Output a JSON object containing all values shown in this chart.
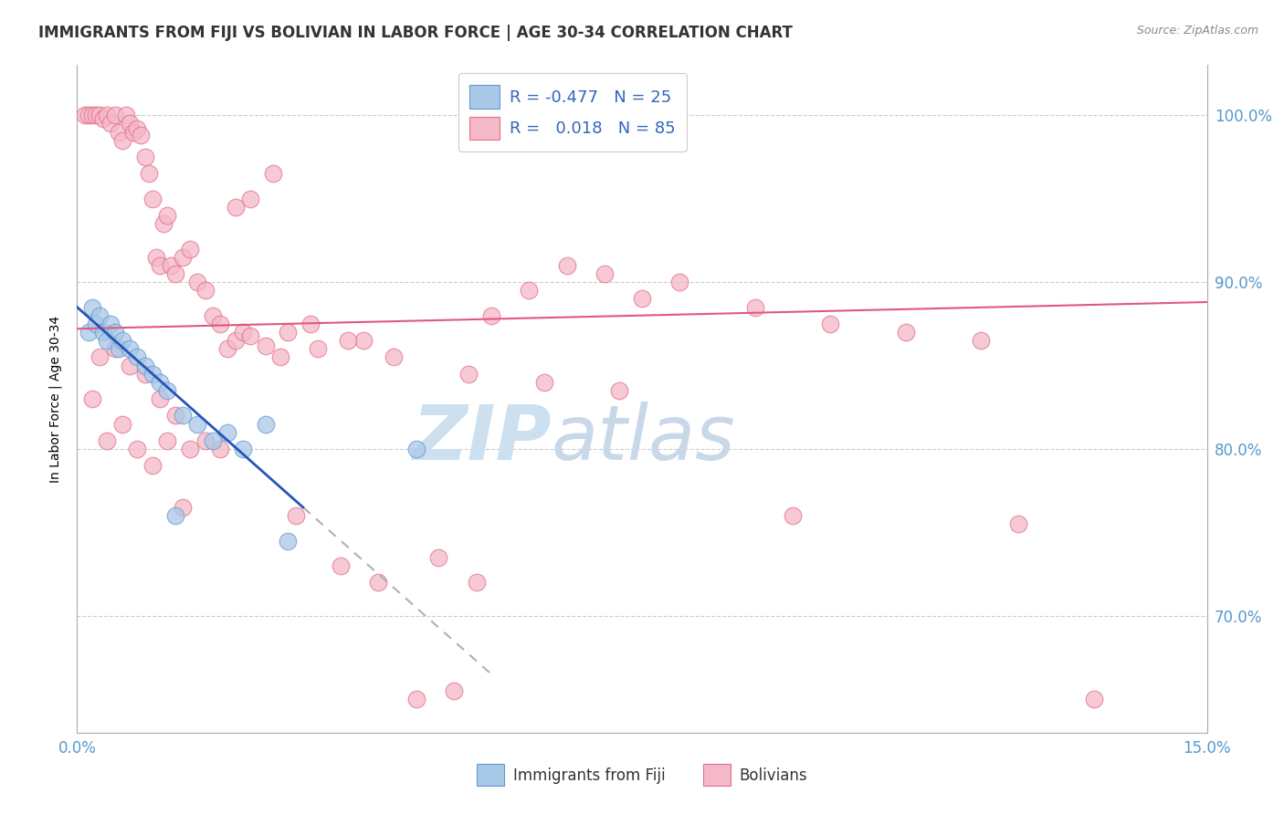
{
  "title": "IMMIGRANTS FROM FIJI VS BOLIVIAN IN LABOR FORCE | AGE 30-34 CORRELATION CHART",
  "source": "Source: ZipAtlas.com",
  "ylabel": "In Labor Force | Age 30-34",
  "xlim": [
    0.0,
    15.0
  ],
  "ylim": [
    63.0,
    103.0
  ],
  "yticks": [
    70.0,
    80.0,
    90.0,
    100.0
  ],
  "ytick_labels": [
    "70.0%",
    "80.0%",
    "90.0%",
    "100.0%"
  ],
  "legend_fiji_label": "Immigrants from Fiji",
  "legend_bolivia_label": "Bolivians",
  "fiji_R": "-0.477",
  "fiji_N": "25",
  "bolivia_R": "0.018",
  "bolivia_N": "85",
  "fiji_color": "#a8c8e8",
  "fiji_edge_color": "#6699cc",
  "bolivia_color": "#f5b8c8",
  "bolivia_edge_color": "#e0708a",
  "fiji_scatter_x": [
    0.15,
    0.2,
    0.25,
    0.3,
    0.35,
    0.4,
    0.45,
    0.5,
    0.55,
    0.6,
    0.7,
    0.8,
    0.9,
    1.0,
    1.1,
    1.2,
    1.4,
    1.6,
    1.8,
    2.0,
    2.2,
    2.5,
    2.8,
    1.3,
    4.5
  ],
  "fiji_scatter_y": [
    87.0,
    88.5,
    87.5,
    88.0,
    87.0,
    86.5,
    87.5,
    87.0,
    86.0,
    86.5,
    86.0,
    85.5,
    85.0,
    84.5,
    84.0,
    83.5,
    82.0,
    81.5,
    80.5,
    81.0,
    80.0,
    81.5,
    74.5,
    76.0,
    80.0
  ],
  "bolivia_scatter_x": [
    0.1,
    0.15,
    0.2,
    0.25,
    0.3,
    0.35,
    0.4,
    0.45,
    0.5,
    0.55,
    0.6,
    0.65,
    0.7,
    0.75,
    0.8,
    0.85,
    0.9,
    0.95,
    1.0,
    1.05,
    1.1,
    1.15,
    1.2,
    1.25,
    1.3,
    1.4,
    1.5,
    1.6,
    1.7,
    1.8,
    1.9,
    2.0,
    2.1,
    2.2,
    2.3,
    2.5,
    2.7,
    2.9,
    3.2,
    3.5,
    3.8,
    4.0,
    4.5,
    5.0,
    5.5,
    6.0,
    6.5,
    7.0,
    7.5,
    8.0,
    9.0,
    10.0,
    11.0,
    12.0,
    0.3,
    0.5,
    0.7,
    0.9,
    1.1,
    1.3,
    1.5,
    1.7,
    1.9,
    2.1,
    2.3,
    2.6,
    2.8,
    3.1,
    3.6,
    4.2,
    5.2,
    6.2,
    7.2,
    0.2,
    0.4,
    0.6,
    0.8,
    1.0,
    1.2,
    1.4,
    4.8,
    5.3,
    9.5,
    12.5,
    13.5
  ],
  "bolivia_scatter_y": [
    100.0,
    100.0,
    100.0,
    100.0,
    100.0,
    99.8,
    100.0,
    99.5,
    100.0,
    99.0,
    98.5,
    100.0,
    99.5,
    99.0,
    99.2,
    98.8,
    97.5,
    96.5,
    95.0,
    91.5,
    91.0,
    93.5,
    94.0,
    91.0,
    90.5,
    91.5,
    92.0,
    90.0,
    89.5,
    88.0,
    87.5,
    86.0,
    86.5,
    87.0,
    86.8,
    86.2,
    85.5,
    76.0,
    86.0,
    73.0,
    86.5,
    72.0,
    65.0,
    65.5,
    88.0,
    89.5,
    91.0,
    90.5,
    89.0,
    90.0,
    88.5,
    87.5,
    87.0,
    86.5,
    85.5,
    86.0,
    85.0,
    84.5,
    83.0,
    82.0,
    80.0,
    80.5,
    80.0,
    94.5,
    95.0,
    96.5,
    87.0,
    87.5,
    86.5,
    85.5,
    84.5,
    84.0,
    83.5,
    83.0,
    80.5,
    81.5,
    80.0,
    79.0,
    80.5,
    76.5,
    73.5,
    72.0,
    76.0,
    75.5,
    65.0
  ],
  "fiji_trend_x0": 0.0,
  "fiji_trend_y0": 88.5,
  "fiji_trend_x1": 5.5,
  "fiji_trend_y1": 66.5,
  "fiji_solid_x_end": 3.0,
  "bolivia_trend_x0": 0.0,
  "bolivia_trend_y0": 87.2,
  "bolivia_trend_x1": 15.0,
  "bolivia_trend_y1": 88.8,
  "background_color": "#ffffff",
  "grid_color": "#cccccc",
  "title_fontsize": 12,
  "axis_label_fontsize": 10,
  "tick_fontsize": 10,
  "source_fontsize": 9,
  "watermark_zip": "ZIP",
  "watermark_atlas": "atlas",
  "watermark_color_zip": "#cce0f0",
  "watermark_color_atlas": "#c8d8e8",
  "watermark_fontsize": 60
}
